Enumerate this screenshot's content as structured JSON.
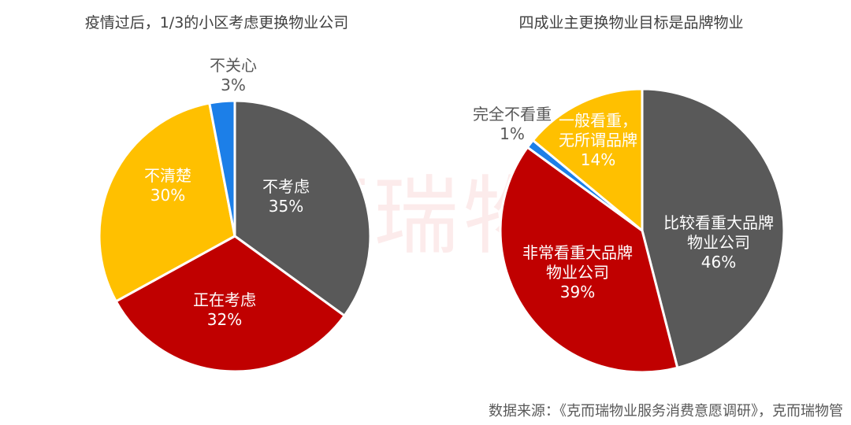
{
  "watermark": "克而瑞物管",
  "source": "数据来源：《克而瑞物业服务消费意愿调研》，克而瑞物管",
  "chart_data": [
    {
      "type": "pie",
      "title": "疫情过后，1/3的小区考虑更换物业公司",
      "slices": [
        {
          "label": "不考虑",
          "value": 35,
          "value_label": "35%",
          "color": "#595959"
        },
        {
          "label": "正在考虑",
          "value": 32,
          "value_label": "32%",
          "color": "#C00000"
        },
        {
          "label": "不清楚",
          "value": 30,
          "value_label": "30%",
          "color": "#FFC000"
        },
        {
          "label": "不关心",
          "value": 3,
          "value_label": "3%",
          "color": "#1C7FE8"
        }
      ]
    },
    {
      "type": "pie",
      "title": "四成业主更换物业目标是品牌物业",
      "slices": [
        {
          "label": "比较看重大品牌物业公司",
          "value": 46,
          "value_label": "46%",
          "color": "#595959"
        },
        {
          "label": "非常看重大品牌物业公司",
          "value": 39,
          "value_label": "39%",
          "color": "#C00000"
        },
        {
          "label": "完全不看重",
          "value": 1,
          "value_label": "1%",
          "color": "#1C7FE8"
        },
        {
          "label": "一般看重，无所谓品牌",
          "value": 14,
          "value_label": "14%",
          "color": "#FFC000"
        }
      ]
    }
  ]
}
